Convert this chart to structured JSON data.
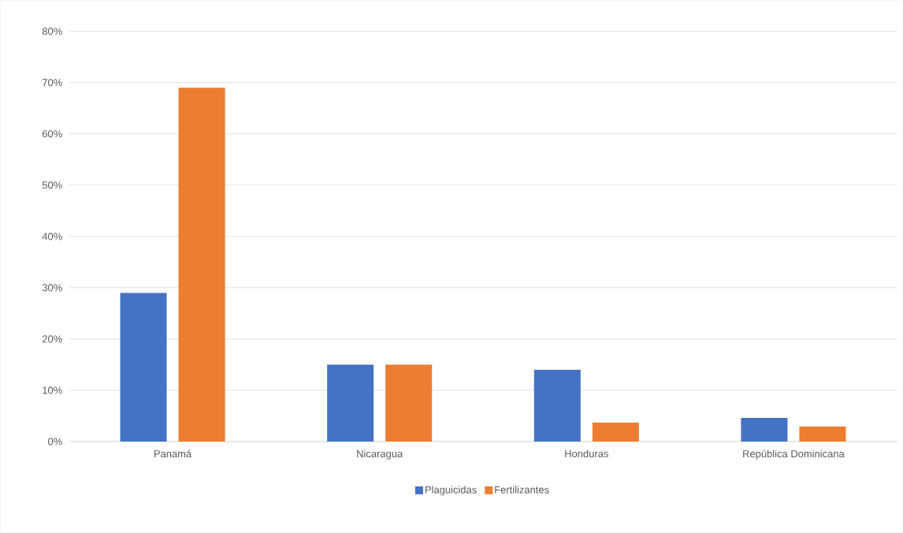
{
  "chart_data": {
    "type": "bar",
    "categories": [
      "Panamá",
      "Nicaragua",
      "Honduras",
      "República Dominicana"
    ],
    "series": [
      {
        "name": "Plaguicidas",
        "color": "#4472c4",
        "values": [
          29,
          15,
          14,
          4.6
        ]
      },
      {
        "name": "Fertilizantes",
        "color": "#ed7d31",
        "values": [
          69,
          15,
          3.7,
          2.9
        ]
      }
    ],
    "ylim": [
      0,
      80
    ],
    "yticks": [
      {
        "value": 0,
        "label": "0%"
      },
      {
        "value": 10,
        "label": "10%"
      },
      {
        "value": 20,
        "label": "20%"
      },
      {
        "value": 30,
        "label": "30%"
      },
      {
        "value": 40,
        "label": "40%"
      },
      {
        "value": 50,
        "label": "50%"
      },
      {
        "value": 60,
        "label": "60%"
      },
      {
        "value": 70,
        "label": "70%"
      },
      {
        "value": 80,
        "label": "80%"
      }
    ],
    "grid": "y",
    "legend": "bottom"
  }
}
